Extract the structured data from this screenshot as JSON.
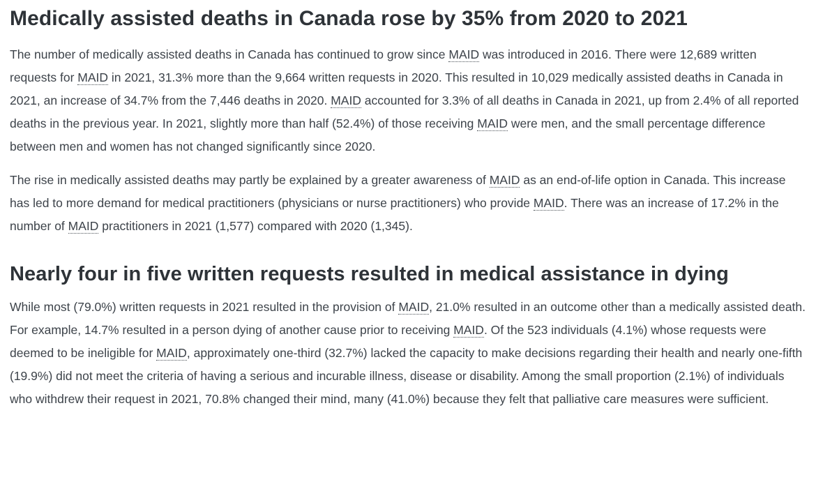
{
  "content": {
    "heading1": "Medically assisted deaths in Canada rose by 35% from 2020 to 2021",
    "heading2": "Nearly four in five written requests resulted in medical assistance in dying",
    "paragraphs": [
      {
        "segments": [
          {
            "text": "The number of medically assisted deaths in Canada has continued to grow since ",
            "abbr": false
          },
          {
            "text": "MAID",
            "abbr": true
          },
          {
            "text": " was introduced in 2016. There were 12,689 written requests for ",
            "abbr": false
          },
          {
            "text": "MAID",
            "abbr": true
          },
          {
            "text": " in 2021, 31.3% more than the 9,664 written requests in 2020. This resulted in 10,029 medically assisted deaths in Canada in 2021, an increase of 34.7% from the 7,446 deaths in 2020. ",
            "abbr": false
          },
          {
            "text": "MAID",
            "abbr": true
          },
          {
            "text": " accounted for 3.3% of all deaths in Canada in 2021, up from 2.4% of all reported deaths in the previous year. In 2021, slightly more than half (52.4%) of those receiving ",
            "abbr": false
          },
          {
            "text": "MAID",
            "abbr": true
          },
          {
            "text": " were men, and the small percentage difference between men and women has not changed significantly since 2020.",
            "abbr": false
          }
        ]
      },
      {
        "segments": [
          {
            "text": "The rise in medically assisted deaths may partly be explained by a greater awareness of ",
            "abbr": false
          },
          {
            "text": "MAID",
            "abbr": true
          },
          {
            "text": " as an end-of-life option in Canada. This increase has led to more demand for medical practitioners (physicians or nurse practitioners) who provide ",
            "abbr": false
          },
          {
            "text": "MAID",
            "abbr": true
          },
          {
            "text": ". There was an increase of 17.2% in the number of ",
            "abbr": false
          },
          {
            "text": "MAID",
            "abbr": true
          },
          {
            "text": " practitioners in 2021 (1,577) compared with 2020 (1,345).",
            "abbr": false
          }
        ]
      },
      {
        "segments": [
          {
            "text": "While most (79.0%) written requests in 2021 resulted in the provision of ",
            "abbr": false
          },
          {
            "text": "MAID",
            "abbr": true
          },
          {
            "text": ", 21.0% resulted in an outcome other than a medically assisted death. For example, 14.7% resulted in a person dying of another cause prior to receiving ",
            "abbr": false
          },
          {
            "text": "MAID",
            "abbr": true
          },
          {
            "text": ". Of the 523 individuals (4.1%) whose requests were deemed to be ineligible for ",
            "abbr": false
          },
          {
            "text": "MAID",
            "abbr": true
          },
          {
            "text": ", approximately one-third (32.7%) lacked the capacity to make decisions regarding their health and nearly one-fifth (19.9%) did not meet the criteria of having a serious and incurable illness, disease or disability. Among the small proportion (2.1%) of individuals who withdrew their request in 2021, 70.8% changed their mind, many (41.0%) because they felt that palliative care measures were sufficient.",
            "abbr": false
          }
        ]
      }
    ]
  },
  "colors": {
    "heading": "#2e3338",
    "body_text": "#3d434a",
    "background": "#ffffff"
  }
}
